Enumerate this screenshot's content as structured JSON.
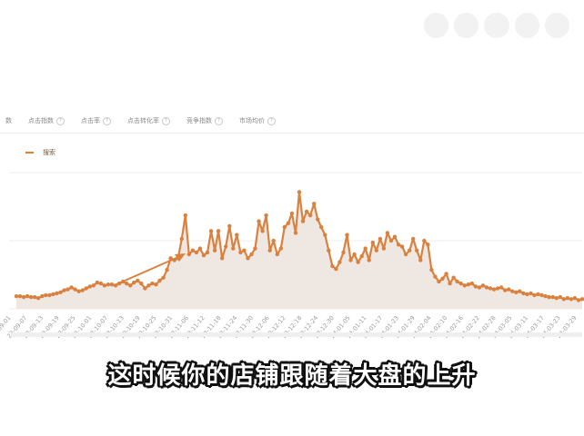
{
  "tabs": [
    {
      "label": "数"
    },
    {
      "label": "点击指数"
    },
    {
      "label": "点击率"
    },
    {
      "label": "点击转化率"
    },
    {
      "label": "竞争指数"
    },
    {
      "label": "市场均价"
    }
  ],
  "legend": {
    "label": "搜索"
  },
  "subtitle": "这时候你的店铺跟随着大盘的上升",
  "colors": {
    "line": "#d9813f",
    "area": "#efe8e2",
    "arrow": "#d9813f",
    "grid": "#ececec"
  },
  "chart_data": {
    "type": "line",
    "title": "",
    "xlabel": "",
    "ylabel": "",
    "grid": true,
    "legend_position": "top-left",
    "x_ticks": [
      "23-09-01",
      "23-09-07",
      "23-09-13",
      "23-09-19",
      "23-09-25",
      "23-10-01",
      "23-10-07",
      "23-10-13",
      "23-10-19",
      "23-10-25",
      "23-10-31",
      "23-11-06",
      "23-11-12",
      "23-11-18",
      "23-11-24",
      "23-11-30",
      "23-12-06",
      "23-12-12",
      "23-12-18",
      "23-12-24",
      "23-12-30",
      "24-01-05",
      "24-01-11",
      "24-01-17",
      "24-01-23",
      "24-01-29",
      "24-02-04",
      "24-02-10",
      "24-02-16",
      "24-02-22",
      "24-02-28",
      "24-03-05",
      "24-03-11",
      "24-03-17",
      "24-03-23",
      "24-03-29"
    ],
    "series": [
      {
        "name": "搜索",
        "values": [
          13,
          13,
          12,
          13,
          12,
          12,
          11,
          13,
          14,
          14,
          15,
          16,
          17,
          19,
          20,
          22,
          20,
          18,
          19,
          21,
          23,
          24,
          27,
          26,
          24,
          25,
          25,
          24,
          26,
          28,
          26,
          24,
          27,
          29,
          26,
          21,
          24,
          26,
          25,
          29,
          32,
          40,
          52,
          50,
          52,
          72,
          96,
          56,
          60,
          58,
          62,
          55,
          58,
          80,
          60,
          80,
          52,
          64,
          85,
          62,
          76,
          58,
          60,
          52,
          56,
          62,
          90,
          80,
          96,
          60,
          70,
          56,
          62,
          84,
          88,
          98,
          78,
          120,
          90,
          100,
          96,
          108,
          92,
          84,
          76,
          60,
          44,
          41,
          48,
          58,
          76,
          50,
          56,
          48,
          54,
          62,
          50,
          68,
          60,
          72,
          62,
          78,
          70,
          74,
          66,
          64,
          56,
          60,
          72,
          60,
          50,
          70,
          66,
          40,
          33,
          28,
          31,
          36,
          26,
          32,
          28,
          26,
          24,
          25,
          26,
          23,
          22,
          24,
          22,
          21,
          20,
          21,
          22,
          19,
          20,
          18,
          17,
          18,
          16,
          15,
          16,
          14,
          15,
          14,
          13,
          12,
          12,
          11,
          12,
          10,
          11,
          10,
          11,
          9,
          10
        ],
        "marker": "circle"
      }
    ],
    "ylim": [
      0,
      140
    ]
  }
}
